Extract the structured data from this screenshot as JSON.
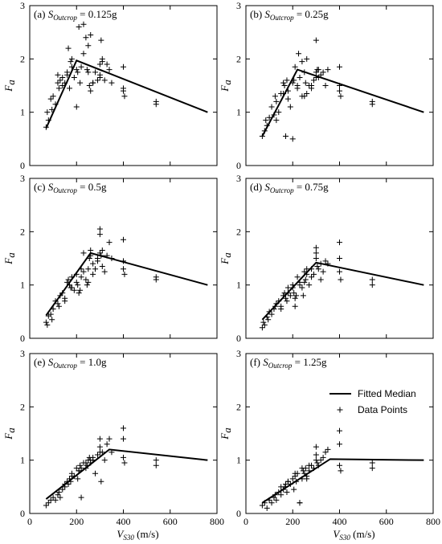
{
  "chart_data": [
    {
      "type": "scatter",
      "panel_label": {
        "prefix": "(a) ",
        "sym": "S",
        "sub": "Outcrop",
        "value": " = 0.125g"
      },
      "xlim": [
        0,
        800
      ],
      "ylim": [
        0,
        3
      ],
      "xticks": [
        0,
        200,
        400,
        600,
        800
      ],
      "yticks": [
        0,
        1,
        2,
        3
      ],
      "show_xticklabels": false,
      "show_xlabel": false,
      "ylabel": {
        "sym": "F",
        "sub": "a"
      },
      "series": [
        {
          "name": "Fitted Median",
          "type": "line",
          "x": [
            70,
            200,
            760
          ],
          "y": [
            0.7,
            1.97,
            1.0
          ]
        },
        {
          "name": "Data Points",
          "type": "scatter",
          "x": [
            70,
            75,
            80,
            90,
            95,
            100,
            110,
            120,
            125,
            130,
            140,
            150,
            160,
            165,
            170,
            175,
            180,
            190,
            200,
            205,
            210,
            215,
            220,
            230,
            240,
            245,
            250,
            255,
            260,
            270,
            280,
            290,
            300,
            300,
            305,
            310,
            320,
            330,
            340,
            350,
            400,
            400,
            400,
            405,
            540,
            540,
            230,
            250,
            120,
            140,
            180,
            300,
            310,
            200,
            270,
            160,
            260
          ],
          "y": [
            0.72,
            1.0,
            0.85,
            1.25,
            1.05,
            1.3,
            1.15,
            1.7,
            1.45,
            1.6,
            1.65,
            1.55,
            1.75,
            2.2,
            1.45,
            1.95,
            1.85,
            1.65,
            1.1,
            1.75,
            2.6,
            1.55,
            1.85,
            2.65,
            2.4,
            1.8,
            2.25,
            1.5,
            1.4,
            1.55,
            1.75,
            1.6,
            1.9,
            1.7,
            2.35,
            1.95,
            1.6,
            1.9,
            1.8,
            1.55,
            1.85,
            1.45,
            1.4,
            1.3,
            1.2,
            1.15,
            2.1,
            1.75,
            1.55,
            1.5,
            2.0,
            1.65,
            2.0,
            1.8,
            1.55,
            1.7,
            2.45
          ]
        }
      ]
    },
    {
      "type": "scatter",
      "panel_label": {
        "prefix": "(b) ",
        "sym": "S",
        "sub": "Outcrop",
        "value": " = 0.25g"
      },
      "xlim": [
        0,
        800
      ],
      "ylim": [
        0,
        3
      ],
      "xticks": [
        0,
        200,
        400,
        600,
        800
      ],
      "yticks": [
        0,
        1,
        2,
        3
      ],
      "show_xticklabels": false,
      "show_xlabel": false,
      "ylabel": {
        "sym": "F",
        "sub": "a"
      },
      "series": [
        {
          "name": "Fitted Median",
          "type": "line",
          "x": [
            70,
            220,
            760
          ],
          "y": [
            0.55,
            1.8,
            1.0
          ]
        },
        {
          "name": "Data Points",
          "type": "scatter",
          "x": [
            70,
            80,
            85,
            90,
            100,
            110,
            120,
            125,
            130,
            140,
            150,
            160,
            165,
            170,
            175,
            180,
            190,
            200,
            205,
            210,
            220,
            225,
            230,
            240,
            250,
            255,
            260,
            270,
            280,
            290,
            300,
            300,
            305,
            310,
            320,
            330,
            340,
            350,
            400,
            400,
            400,
            405,
            540,
            540,
            160,
            200,
            240,
            250,
            280,
            300,
            310,
            130,
            180,
            260,
            220
          ],
          "y": [
            0.55,
            0.65,
            0.85,
            0.75,
            0.9,
            1.1,
            0.95,
            1.3,
            1.2,
            1.0,
            1.35,
            1.55,
            1.5,
            0.55,
            1.6,
            1.25,
            1.1,
            0.5,
            1.6,
            1.85,
            1.45,
            2.1,
            1.65,
            1.95,
            1.3,
            1.55,
            2.0,
            1.5,
            1.45,
            1.6,
            2.35,
            1.75,
            1.8,
            1.65,
            1.7,
            1.75,
            1.5,
            1.8,
            1.85,
            1.5,
            1.4,
            1.3,
            1.2,
            1.15,
            1.35,
            1.55,
            1.3,
            1.75,
            1.5,
            1.65,
            1.8,
            0.85,
            1.4,
            1.35,
            1.5
          ]
        }
      ]
    },
    {
      "type": "scatter",
      "panel_label": {
        "prefix": "(c) ",
        "sym": "S",
        "sub": "Outcrop",
        "value": " = 0.5g"
      },
      "xlim": [
        0,
        800
      ],
      "ylim": [
        0,
        3
      ],
      "xticks": [
        0,
        200,
        400,
        600,
        800
      ],
      "yticks": [
        0,
        1,
        2,
        3
      ],
      "show_xticklabels": false,
      "show_xlabel": false,
      "ylabel": {
        "sym": "F",
        "sub": "a"
      },
      "series": [
        {
          "name": "Fitted Median",
          "type": "line",
          "x": [
            70,
            260,
            760
          ],
          "y": [
            0.43,
            1.6,
            1.0
          ]
        },
        {
          "name": "Data Points",
          "type": "scatter",
          "x": [
            70,
            75,
            80,
            90,
            95,
            100,
            110,
            120,
            125,
            130,
            140,
            150,
            160,
            165,
            170,
            175,
            180,
            190,
            200,
            205,
            210,
            215,
            220,
            230,
            240,
            245,
            250,
            255,
            260,
            270,
            280,
            290,
            300,
            300,
            305,
            310,
            320,
            330,
            340,
            350,
            400,
            400,
            400,
            405,
            540,
            540,
            150,
            180,
            200,
            220,
            250,
            270,
            290,
            300,
            310,
            230,
            260
          ],
          "y": [
            0.3,
            0.25,
            0.42,
            0.45,
            0.35,
            0.55,
            0.7,
            0.65,
            0.6,
            0.8,
            0.85,
            0.75,
            1.05,
            1.1,
            1.0,
            0.95,
            1.15,
            0.9,
            1.2,
            1.0,
            0.85,
            0.9,
            1.3,
            1.6,
            1.1,
            1.0,
            1.05,
            1.5,
            1.65,
            1.2,
            1.3,
            1.45,
            2.05,
            1.95,
            1.55,
            1.35,
            1.25,
            1.55,
            1.8,
            1.5,
            1.85,
            1.45,
            1.3,
            1.2,
            1.15,
            1.1,
            0.7,
            0.95,
            1.05,
            1.15,
            1.3,
            1.4,
            1.5,
            1.6,
            1.65,
            1.25,
            1.55
          ]
        }
      ]
    },
    {
      "type": "scatter",
      "panel_label": {
        "prefix": "(d) ",
        "sym": "S",
        "sub": "Outcrop",
        "value": " = 0.75g"
      },
      "xlim": [
        0,
        800
      ],
      "ylim": [
        0,
        3
      ],
      "xticks": [
        0,
        200,
        400,
        600,
        800
      ],
      "yticks": [
        0,
        1,
        2,
        3
      ],
      "show_xticklabels": false,
      "show_xlabel": false,
      "ylabel": {
        "sym": "F",
        "sub": "a"
      },
      "series": [
        {
          "name": "Fitted Median",
          "type": "line",
          "x": [
            70,
            300,
            760
          ],
          "y": [
            0.35,
            1.42,
            1.0
          ]
        },
        {
          "name": "Data Points",
          "type": "scatter",
          "x": [
            70,
            75,
            80,
            90,
            95,
            100,
            110,
            120,
            125,
            130,
            140,
            150,
            160,
            165,
            170,
            175,
            180,
            190,
            200,
            205,
            210,
            215,
            220,
            230,
            240,
            245,
            250,
            255,
            260,
            270,
            280,
            290,
            300,
            300,
            305,
            310,
            320,
            330,
            340,
            350,
            400,
            400,
            400,
            405,
            540,
            540,
            150,
            180,
            200,
            230,
            260,
            280,
            300,
            320,
            210,
            250
          ],
          "y": [
            0.2,
            0.3,
            0.25,
            0.4,
            0.35,
            0.5,
            0.45,
            0.55,
            0.6,
            0.65,
            0.7,
            0.55,
            0.8,
            0.85,
            0.75,
            0.7,
            0.95,
            0.8,
            1.0,
            0.85,
            0.75,
            0.8,
            1.15,
            1.05,
            0.95,
            0.8,
            1.25,
            1.1,
            1.3,
            1.0,
            1.15,
            1.2,
            1.7,
            1.6,
            1.35,
            1.3,
            1.1,
            1.25,
            1.45,
            1.4,
            1.8,
            1.5,
            1.25,
            1.1,
            1.1,
            1.0,
            0.6,
            0.85,
            0.95,
            1.0,
            1.2,
            1.3,
            1.5,
            1.4,
            0.6,
            1.05
          ]
        }
      ]
    },
    {
      "type": "scatter",
      "panel_label": {
        "prefix": "(e) ",
        "sym": "S",
        "sub": "Outcrop",
        "value": " = 1.0g"
      },
      "xlim": [
        0,
        800
      ],
      "ylim": [
        0,
        3
      ],
      "xticks": [
        0,
        200,
        400,
        600,
        800
      ],
      "yticks": [
        0,
        1,
        2,
        3
      ],
      "show_xticklabels": true,
      "show_xlabel": true,
      "ylabel": {
        "sym": "F",
        "sub": "a"
      },
      "series": [
        {
          "name": "Fitted Median",
          "type": "line",
          "x": [
            70,
            340,
            760
          ],
          "y": [
            0.27,
            1.2,
            1.0
          ]
        },
        {
          "name": "Data Points",
          "type": "scatter",
          "x": [
            70,
            80,
            90,
            100,
            110,
            120,
            125,
            130,
            140,
            150,
            160,
            165,
            170,
            175,
            180,
            190,
            200,
            205,
            210,
            215,
            220,
            230,
            240,
            245,
            250,
            255,
            260,
            270,
            280,
            290,
            300,
            300,
            305,
            310,
            320,
            330,
            340,
            350,
            400,
            400,
            400,
            405,
            540,
            540,
            150,
            180,
            210,
            240,
            270,
            300,
            220,
            260
          ],
          "y": [
            0.15,
            0.2,
            0.25,
            0.3,
            0.25,
            0.35,
            0.4,
            0.3,
            0.45,
            0.5,
            0.6,
            0.55,
            0.65,
            0.6,
            0.75,
            0.7,
            0.85,
            0.65,
            0.8,
            0.9,
            0.3,
            0.95,
            0.85,
            0.9,
            1.0,
            1.05,
            0.95,
            1.0,
            0.75,
            1.1,
            1.4,
            1.25,
            0.6,
            1.15,
            1.0,
            1.3,
            1.4,
            1.15,
            1.6,
            1.4,
            1.05,
            0.95,
            1.0,
            0.9,
            0.55,
            0.7,
            0.8,
            0.95,
            1.05,
            1.15,
            0.85,
            1.0
          ]
        }
      ]
    },
    {
      "type": "scatter",
      "panel_label": {
        "prefix": "(f) ",
        "sym": "S",
        "sub": "Outcrop",
        "value": " = 1.25g"
      },
      "xlim": [
        0,
        800
      ],
      "ylim": [
        0,
        3
      ],
      "xticks": [
        0,
        200,
        400,
        600,
        800
      ],
      "yticks": [
        0,
        1,
        2,
        3
      ],
      "show_xticklabels": true,
      "show_xlabel": true,
      "ylabel": {
        "sym": "F",
        "sub": "a"
      },
      "legend": {
        "show": true,
        "position": "top-right"
      },
      "series": [
        {
          "name": "Fitted Median",
          "type": "line",
          "x": [
            70,
            360,
            760
          ],
          "y": [
            0.2,
            1.02,
            1.0
          ]
        },
        {
          "name": "Data Points",
          "type": "scatter",
          "x": [
            70,
            80,
            90,
            100,
            110,
            120,
            125,
            130,
            140,
            150,
            160,
            165,
            170,
            175,
            180,
            190,
            200,
            205,
            210,
            215,
            220,
            230,
            240,
            245,
            250,
            255,
            260,
            270,
            280,
            290,
            300,
            300,
            305,
            310,
            320,
            330,
            340,
            350,
            400,
            400,
            400,
            405,
            540,
            540,
            150,
            180,
            210,
            240,
            270,
            300,
            230,
            260
          ],
          "y": [
            0.15,
            0.2,
            0.1,
            0.25,
            0.2,
            0.3,
            0.35,
            0.25,
            0.4,
            0.35,
            0.45,
            0.5,
            0.55,
            0.4,
            0.6,
            0.55,
            0.65,
            0.45,
            0.7,
            0.6,
            0.75,
            0.2,
            0.65,
            0.8,
            0.75,
            0.85,
            0.7,
            0.8,
            0.9,
            0.85,
            1.25,
            1.1,
            0.95,
            0.9,
            1.0,
            1.05,
            1.15,
            1.2,
            1.55,
            1.3,
            0.9,
            0.8,
            0.95,
            0.85,
            0.5,
            0.6,
            0.75,
            0.85,
            0.9,
            1.0,
            0.2,
            0.65
          ]
        }
      ]
    }
  ],
  "xlabel": {
    "sym": "V",
    "sub": "S30",
    "unit": " (m/s)"
  }
}
